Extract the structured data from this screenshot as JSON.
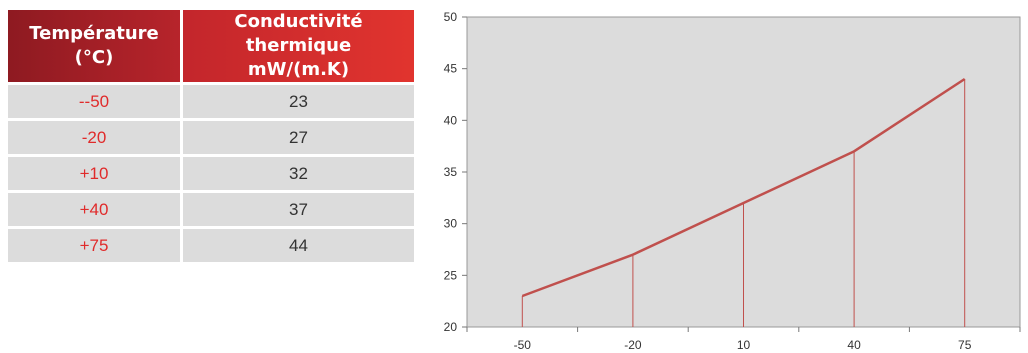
{
  "table": {
    "headers": {
      "temperature": [
        "Température",
        "(°C)"
      ],
      "conductivity": [
        "Conductivité thermique",
        "mW/(m.K)"
      ]
    },
    "rows": [
      {
        "temperature": "--50",
        "conductivity": "23"
      },
      {
        "temperature": "-20",
        "conductivity": "27"
      },
      {
        "temperature": "+10",
        "conductivity": "32"
      },
      {
        "temperature": "+40",
        "conductivity": "37"
      },
      {
        "temperature": "+75",
        "conductivity": "44"
      }
    ]
  },
  "colors": {
    "header_dark": "#8e1a21",
    "header_bright": "#e1342e",
    "temperature_text": "#e02b2b",
    "row_background": "#dcdcdc",
    "plot_background": "#dcdcdc",
    "line": "#c0504d"
  },
  "chart_data": {
    "type": "line",
    "title": "",
    "xlabel": "",
    "ylabel": "",
    "categories": [
      "-50",
      "-20",
      "10",
      "40",
      "75"
    ],
    "series": [
      {
        "values": [
          23,
          27,
          32,
          37,
          44
        ]
      }
    ],
    "ylim": [
      20,
      50
    ],
    "y_ticks": [
      20,
      25,
      30,
      35,
      40,
      45,
      50
    ],
    "drop_lines": true,
    "grid": false
  }
}
